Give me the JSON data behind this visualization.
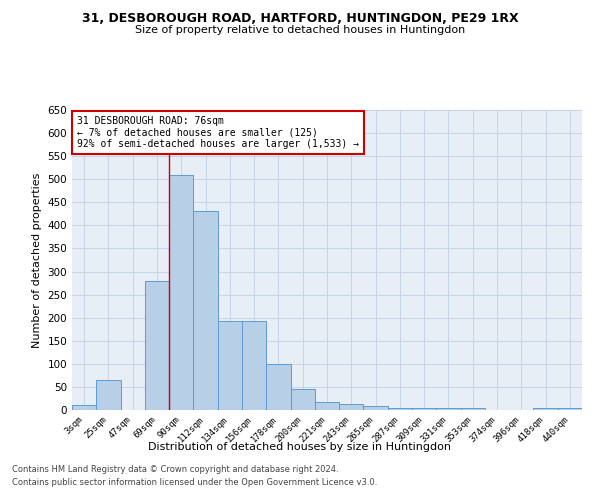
{
  "title1": "31, DESBOROUGH ROAD, HARTFORD, HUNTINGDON, PE29 1RX",
  "title2": "Size of property relative to detached houses in Huntingdon",
  "xlabel": "Distribution of detached houses by size in Huntingdon",
  "ylabel": "Number of detached properties",
  "categories": [
    "3sqm",
    "25sqm",
    "47sqm",
    "69sqm",
    "90sqm",
    "112sqm",
    "134sqm",
    "156sqm",
    "178sqm",
    "200sqm",
    "221sqm",
    "243sqm",
    "265sqm",
    "287sqm",
    "309sqm",
    "331sqm",
    "353sqm",
    "374sqm",
    "396sqm",
    "418sqm",
    "440sqm"
  ],
  "values": [
    10,
    65,
    0,
    280,
    510,
    432,
    192,
    192,
    100,
    46,
    18,
    12,
    9,
    5,
    5,
    5,
    5,
    0,
    0,
    5,
    5
  ],
  "bar_color": "#b8cfe8",
  "bar_edge_color": "#5b9bd5",
  "grid_color": "#c8d4e8",
  "background_color": "#e8eef6",
  "vline_x_idx": 3.5,
  "annotation_text": "31 DESBOROUGH ROAD: 76sqm\n← 7% of detached houses are smaller (125)\n92% of semi-detached houses are larger (1,533) →",
  "annotation_box_color": "#ffffff",
  "annotation_box_edge": "#cc0000",
  "footer1": "Contains HM Land Registry data © Crown copyright and database right 2024.",
  "footer2": "Contains public sector information licensed under the Open Government Licence v3.0.",
  "ylim": [
    0,
    650
  ],
  "yticks": [
    0,
    50,
    100,
    150,
    200,
    250,
    300,
    350,
    400,
    450,
    500,
    550,
    600,
    650
  ]
}
